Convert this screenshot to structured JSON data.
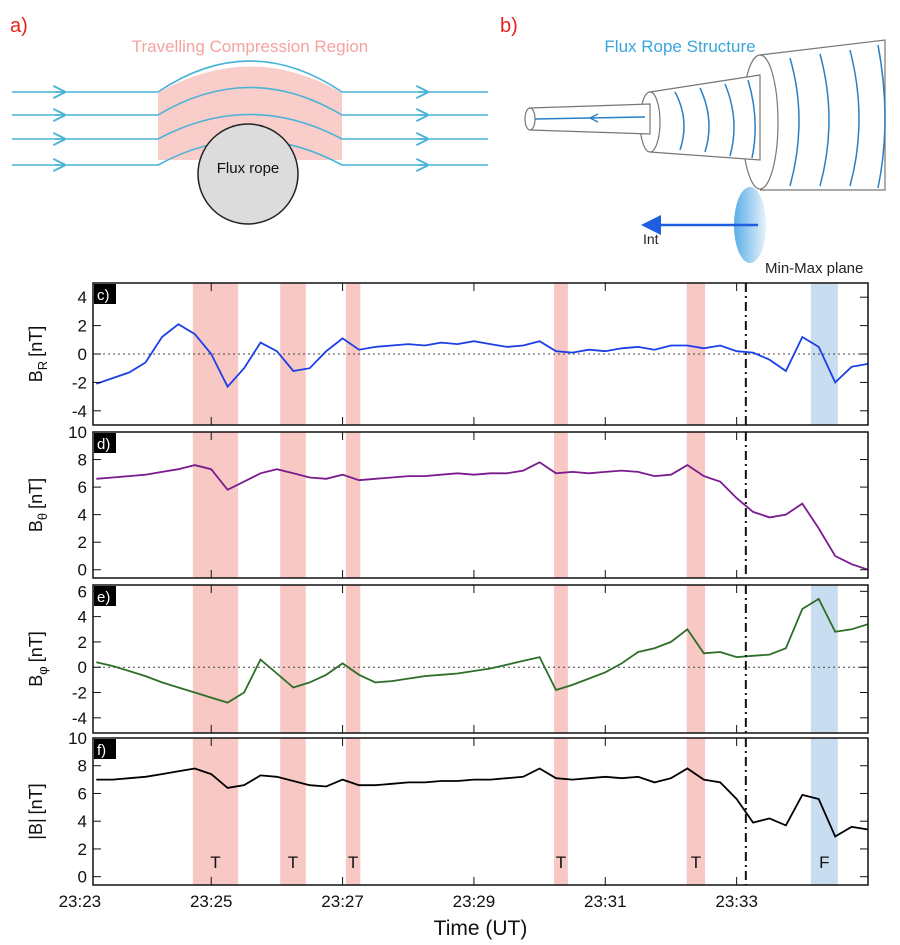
{
  "diagram_a": {
    "label": "a)",
    "title": "Travelling Compression Region",
    "rope": "Flux rope"
  },
  "diagram_b": {
    "label": "b)",
    "title": "Flux Rope Structure",
    "axis": "Int",
    "plane": "Min-Max plane"
  },
  "chart_data": [
    {
      "type": "line",
      "panel_label": "c)",
      "ylabel": {
        "main": "B",
        "sub": "R",
        "unit": "[nT]"
      },
      "x": [
        1403.25,
        1403.5,
        1403.75,
        1404,
        1404.25,
        1404.5,
        1404.75,
        1405,
        1405.25,
        1405.5,
        1405.75,
        1406,
        1406.25,
        1406.5,
        1406.75,
        1407,
        1407.25,
        1407.5,
        1407.75,
        1408,
        1408.25,
        1408.5,
        1408.75,
        1409,
        1409.25,
        1409.5,
        1409.75,
        1410,
        1410.25,
        1410.5,
        1410.75,
        1411,
        1411.25,
        1411.5,
        1411.75,
        1412,
        1412.25,
        1412.5,
        1412.75,
        1413,
        1413.25,
        1413.5,
        1413.75,
        1414,
        1414.25,
        1414.5,
        1414.75,
        1415
      ],
      "xlim": [
        1403.2,
        1415
      ],
      "ylim": [
        -5,
        5
      ],
      "yticks": [
        -4,
        -2,
        0,
        2,
        4
      ],
      "zero_line": true,
      "series": [
        {
          "color": "#1c3fe6",
          "values": [
            -2.1,
            -1.7,
            -1.3,
            -0.6,
            1.2,
            2.1,
            1.4,
            0.0,
            -2.3,
            -1.0,
            0.8,
            0.2,
            -1.2,
            -1.0,
            0.2,
            1.1,
            0.3,
            0.5,
            0.6,
            0.7,
            0.6,
            0.8,
            0.7,
            0.9,
            0.7,
            0.5,
            0.6,
            0.9,
            0.2,
            0.1,
            0.3,
            0.2,
            0.4,
            0.5,
            0.3,
            0.6,
            0.6,
            0.4,
            0.6,
            0.2,
            0.1,
            -0.4,
            -1.2,
            1.2,
            0.5,
            -2.0,
            -0.9,
            -0.7
          ]
        }
      ],
      "spans": [
        {
          "x0": 1404.72,
          "x1": 1405.41,
          "color": "#f8c8c5"
        },
        {
          "x0": 1406.05,
          "x1": 1406.44,
          "color": "#f8c8c5"
        },
        {
          "x0": 1407.05,
          "x1": 1407.27,
          "color": "#f8c8c5"
        },
        {
          "x0": 1410.22,
          "x1": 1410.43,
          "color": "#f8c8c5"
        },
        {
          "x0": 1412.24,
          "x1": 1412.52,
          "color": "#f8c8c5"
        },
        {
          "x0": 1414.13,
          "x1": 1414.54,
          "color": "#c9ddf1"
        }
      ],
      "vline": 1413.14
    },
    {
      "type": "line",
      "panel_label": "d)",
      "ylabel": {
        "main": "B",
        "sub": "θ",
        "unit": "[nT]"
      },
      "x": [
        1403.25,
        1403.5,
        1403.75,
        1404,
        1404.25,
        1404.5,
        1404.75,
        1405,
        1405.25,
        1405.5,
        1405.75,
        1406,
        1406.25,
        1406.5,
        1406.75,
        1407,
        1407.25,
        1407.5,
        1407.75,
        1408,
        1408.25,
        1408.5,
        1408.75,
        1409,
        1409.25,
        1409.5,
        1409.75,
        1410,
        1410.25,
        1410.5,
        1410.75,
        1411,
        1411.25,
        1411.5,
        1411.75,
        1412,
        1412.25,
        1412.5,
        1412.75,
        1413,
        1413.25,
        1413.5,
        1413.75,
        1414,
        1414.25,
        1414.5,
        1414.75,
        1415
      ],
      "xlim": [
        1403.2,
        1415
      ],
      "ylim": [
        -0.6,
        10
      ],
      "yticks": [
        0,
        2,
        4,
        6,
        8,
        10
      ],
      "zero_line": false,
      "series": [
        {
          "color": "#7a1b8e",
          "values": [
            6.6,
            6.7,
            6.8,
            6.9,
            7.1,
            7.3,
            7.6,
            7.3,
            5.8,
            6.4,
            7.0,
            7.3,
            7.0,
            6.7,
            6.6,
            6.9,
            6.5,
            6.6,
            6.7,
            6.8,
            6.8,
            6.9,
            7.0,
            6.9,
            7.0,
            7.0,
            7.2,
            7.8,
            7.0,
            7.1,
            7.0,
            7.1,
            7.2,
            7.1,
            6.8,
            6.9,
            7.6,
            6.8,
            6.4,
            5.2,
            4.2,
            3.8,
            4.0,
            4.8,
            3.0,
            1.0,
            0.4,
            0.0
          ]
        }
      ],
      "spans": [
        {
          "x0": 1404.72,
          "x1": 1405.41,
          "color": "#f8c8c5"
        },
        {
          "x0": 1406.05,
          "x1": 1406.44,
          "color": "#f8c8c5"
        },
        {
          "x0": 1407.05,
          "x1": 1407.27,
          "color": "#f8c8c5"
        },
        {
          "x0": 1410.22,
          "x1": 1410.43,
          "color": "#f8c8c5"
        },
        {
          "x0": 1412.24,
          "x1": 1412.52,
          "color": "#f8c8c5"
        }
      ],
      "vline": 1413.14
    },
    {
      "type": "line",
      "panel_label": "e)",
      "ylabel": {
        "main": "B",
        "sub": "φ",
        "unit": "[nT]"
      },
      "x": [
        1403.25,
        1403.5,
        1403.75,
        1404,
        1404.25,
        1404.5,
        1404.75,
        1405,
        1405.25,
        1405.5,
        1405.75,
        1406,
        1406.25,
        1406.5,
        1406.75,
        1407,
        1407.25,
        1407.5,
        1407.75,
        1408,
        1408.25,
        1408.5,
        1408.75,
        1409,
        1409.25,
        1409.5,
        1409.75,
        1410,
        1410.25,
        1410.5,
        1410.75,
        1411,
        1411.25,
        1411.5,
        1411.75,
        1412,
        1412.25,
        1412.5,
        1412.75,
        1413,
        1413.25,
        1413.5,
        1413.75,
        1414,
        1414.25,
        1414.5,
        1414.75,
        1415
      ],
      "xlim": [
        1403.2,
        1415
      ],
      "ylim": [
        -5.2,
        6.5
      ],
      "yticks": [
        -4,
        -2,
        0,
        2,
        4,
        6
      ],
      "zero_line": true,
      "series": [
        {
          "color": "#2e6e28",
          "values": [
            0.4,
            0.1,
            -0.3,
            -0.7,
            -1.2,
            -1.6,
            -2.0,
            -2.4,
            -2.8,
            -2.0,
            0.6,
            -0.5,
            -1.6,
            -1.2,
            -0.6,
            0.3,
            -0.6,
            -1.2,
            -1.1,
            -0.9,
            -0.7,
            -0.6,
            -0.5,
            -0.3,
            -0.1,
            0.2,
            0.5,
            0.8,
            -1.8,
            -1.4,
            -0.9,
            -0.4,
            0.3,
            1.2,
            1.5,
            2.0,
            3.0,
            1.1,
            1.2,
            0.8,
            0.9,
            1.0,
            1.5,
            4.6,
            5.4,
            2.8,
            3.0,
            3.4
          ]
        }
      ],
      "spans": [
        {
          "x0": 1404.72,
          "x1": 1405.41,
          "color": "#f8c8c5"
        },
        {
          "x0": 1406.05,
          "x1": 1406.44,
          "color": "#f8c8c5"
        },
        {
          "x0": 1407.05,
          "x1": 1407.27,
          "color": "#f8c8c5"
        },
        {
          "x0": 1410.22,
          "x1": 1410.43,
          "color": "#f8c8c5"
        },
        {
          "x0": 1412.24,
          "x1": 1412.52,
          "color": "#f8c8c5"
        },
        {
          "x0": 1414.13,
          "x1": 1414.54,
          "color": "#c9ddf1"
        }
      ],
      "vline": 1413.14
    },
    {
      "type": "line",
      "panel_label": "f)",
      "ylabel": {
        "main": "|B|",
        "unit": "[nT]"
      },
      "x": [
        1403.25,
        1403.5,
        1403.75,
        1404,
        1404.25,
        1404.5,
        1404.75,
        1405,
        1405.25,
        1405.5,
        1405.75,
        1406,
        1406.25,
        1406.5,
        1406.75,
        1407,
        1407.25,
        1407.5,
        1407.75,
        1408,
        1408.25,
        1408.5,
        1408.75,
        1409,
        1409.25,
        1409.5,
        1409.75,
        1410,
        1410.25,
        1410.5,
        1410.75,
        1411,
        1411.25,
        1411.5,
        1411.75,
        1412,
        1412.25,
        1412.5,
        1412.75,
        1413,
        1413.25,
        1413.5,
        1413.75,
        1414,
        1414.25,
        1414.5,
        1414.75,
        1415
      ],
      "xlim": [
        1403.2,
        1415
      ],
      "ylim": [
        -0.6,
        10
      ],
      "yticks": [
        0,
        2,
        4,
        6,
        8,
        10
      ],
      "zero_line": false,
      "xticks": [
        {
          "value": 1403,
          "label": "23:23"
        },
        {
          "value": 1405,
          "label": "23:25"
        },
        {
          "value": 1407,
          "label": "23:27"
        },
        {
          "value": 1409,
          "label": "23:29"
        },
        {
          "value": 1411,
          "label": "23:31"
        },
        {
          "value": 1413,
          "label": "23:33"
        }
      ],
      "xlabel": "Time (UT)",
      "series": [
        {
          "color": "#000000",
          "values": [
            7.0,
            7.0,
            7.1,
            7.2,
            7.4,
            7.6,
            7.8,
            7.4,
            6.4,
            6.6,
            7.3,
            7.2,
            6.9,
            6.6,
            6.5,
            7.0,
            6.6,
            6.6,
            6.7,
            6.8,
            6.8,
            6.9,
            6.9,
            7.0,
            7.0,
            7.1,
            7.2,
            7.8,
            7.1,
            7.0,
            7.1,
            7.2,
            7.1,
            7.2,
            6.8,
            7.1,
            7.8,
            7.0,
            6.8,
            5.6,
            3.9,
            4.2,
            3.7,
            5.9,
            5.6,
            2.9,
            3.6,
            3.4
          ]
        }
      ],
      "spans": [
        {
          "x0": 1404.72,
          "x1": 1405.41,
          "color": "#f8c8c5",
          "label": "T"
        },
        {
          "x0": 1406.05,
          "x1": 1406.44,
          "color": "#f8c8c5",
          "label": "T"
        },
        {
          "x0": 1407.05,
          "x1": 1407.27,
          "color": "#f8c8c5",
          "label": "T"
        },
        {
          "x0": 1410.22,
          "x1": 1410.43,
          "color": "#f8c8c5",
          "label": "T"
        },
        {
          "x0": 1412.24,
          "x1": 1412.52,
          "color": "#f8c8c5",
          "label": "T"
        },
        {
          "x0": 1414.13,
          "x1": 1414.54,
          "color": "#c9ddf1",
          "label": "F"
        }
      ],
      "vline": 1413.14
    }
  ]
}
